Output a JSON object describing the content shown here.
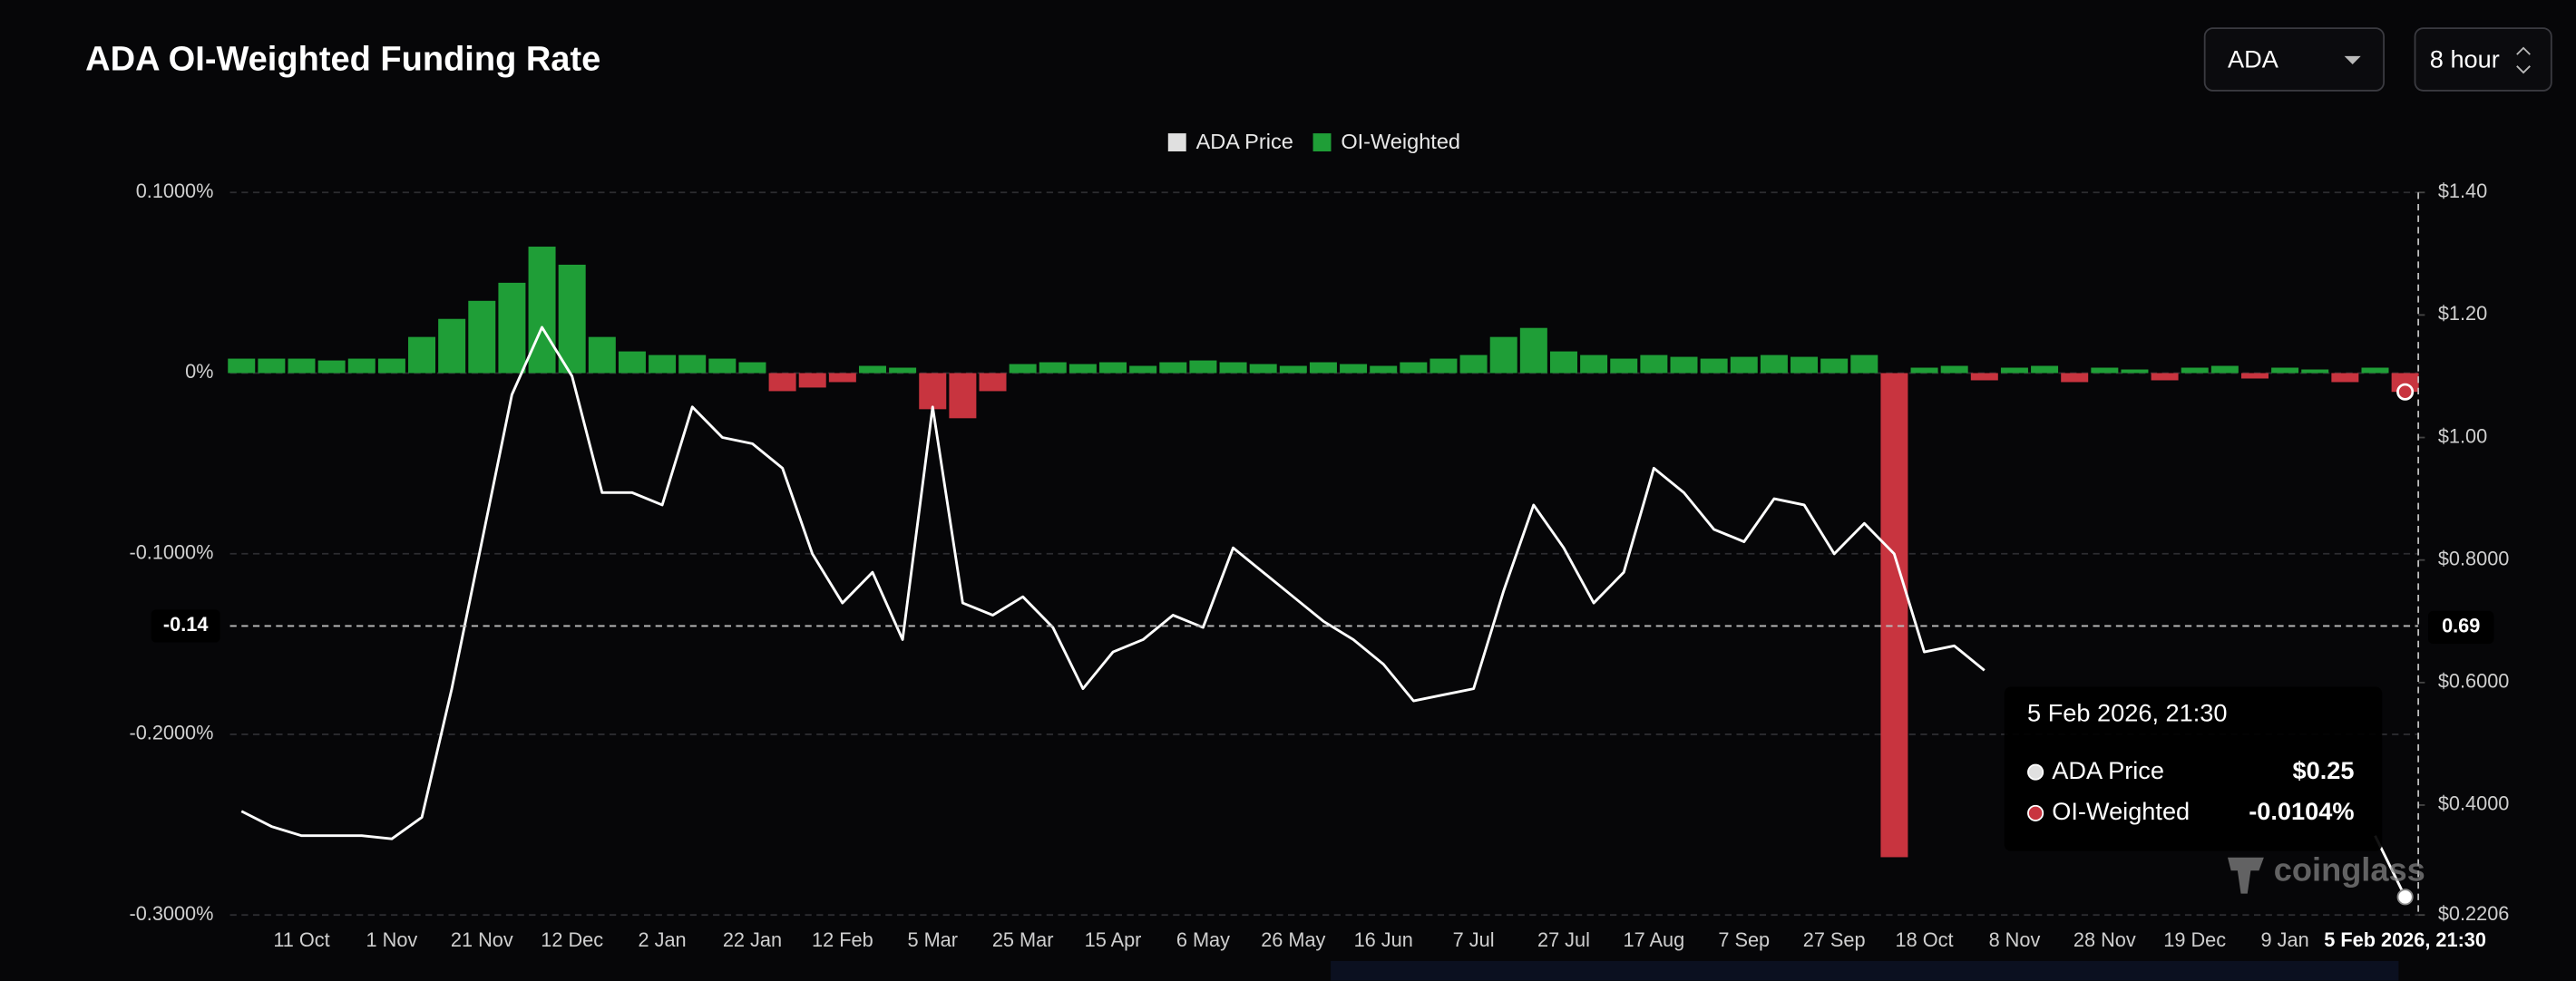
{
  "controls": {
    "symbol": "ADA",
    "interval": "8 hour"
  },
  "watermark": "coinglass",
  "chart_data": {
    "type": "combo",
    "title": "ADA OI-Weighted Funding Rate",
    "categories": [
      null,
      null,
      "11 Oct",
      null,
      null,
      "1 Nov",
      null,
      null,
      "21 Nov",
      null,
      null,
      "12 Dec",
      null,
      null,
      "2 Jan",
      null,
      null,
      "22 Jan",
      null,
      null,
      "12 Feb",
      null,
      null,
      "5 Mar",
      null,
      null,
      "25 Mar",
      null,
      null,
      "15 Apr",
      null,
      null,
      "6 May",
      null,
      null,
      "26 May",
      null,
      null,
      "16 Jun",
      null,
      null,
      "7 Jul",
      null,
      null,
      "27 Jul",
      null,
      null,
      "17 Aug",
      null,
      null,
      "7 Sep",
      null,
      null,
      "27 Sep",
      null,
      null,
      "18 Oct",
      null,
      null,
      "8 Nov",
      null,
      null,
      "28 Nov",
      null,
      null,
      "19 Dec",
      null,
      null,
      "9 Jan",
      null,
      null,
      null,
      "5 Feb 2026, 21:30"
    ],
    "series": [
      {
        "name": "ADA Price",
        "type": "line",
        "axis": "y2",
        "color": "#ffffff",
        "legend_color": "#e0e0e0",
        "values": [
          0.39,
          0.365,
          0.35,
          0.35,
          0.35,
          0.345,
          0.38,
          0.59,
          0.83,
          1.07,
          1.18,
          1.1,
          0.91,
          0.91,
          0.89,
          1.05,
          1.0,
          0.99,
          0.95,
          0.81,
          0.73,
          0.78,
          0.67,
          1.05,
          0.73,
          0.71,
          0.74,
          0.69,
          0.59,
          0.65,
          0.67,
          0.71,
          0.69,
          0.82,
          0.78,
          0.74,
          0.7,
          0.67,
          0.63,
          0.57,
          0.58,
          0.59,
          0.75,
          0.89,
          0.82,
          0.73,
          0.78,
          0.95,
          0.91,
          0.85,
          0.83,
          0.9,
          0.89,
          0.81,
          0.86,
          0.81,
          0.65,
          0.66,
          0.62,
          null,
          null,
          null,
          null,
          null,
          null,
          null,
          null,
          null,
          null,
          null,
          null,
          0.35,
          0.25
        ],
        "value_labels": [
          null,
          null,
          null,
          null,
          null,
          null,
          null,
          null,
          null,
          null,
          null,
          null,
          null,
          null,
          null,
          null,
          null,
          null,
          null,
          null,
          null,
          null,
          null,
          null,
          null,
          null,
          null,
          null,
          null,
          null,
          null,
          null,
          null,
          null,
          null,
          null,
          null,
          null,
          null,
          null,
          null,
          null,
          null,
          null,
          null,
          null,
          null,
          null,
          null,
          null,
          null,
          null,
          null,
          null,
          null,
          null,
          null,
          null,
          null,
          null,
          null,
          null,
          null,
          null,
          null,
          null,
          null,
          null,
          null,
          null,
          null,
          null,
          "$0.25"
        ]
      },
      {
        "name": "OI-Weighted",
        "type": "bar",
        "color": "#1f9e37",
        "negative_color": "#c8343f",
        "values": [
          0.008,
          0.008,
          0.008,
          0.007,
          0.008,
          0.008,
          0.02,
          0.03,
          0.04,
          0.05,
          0.07,
          0.06,
          0.02,
          0.012,
          0.01,
          0.01,
          0.008,
          0.006,
          -0.01,
          -0.008,
          -0.005,
          0.004,
          0.003,
          -0.02,
          -0.025,
          -0.01,
          0.005,
          0.006,
          0.005,
          0.006,
          0.004,
          0.006,
          0.007,
          0.006,
          0.005,
          0.004,
          0.006,
          0.005,
          0.004,
          0.006,
          0.008,
          0.01,
          0.02,
          0.025,
          0.012,
          0.01,
          0.008,
          0.01,
          0.009,
          0.008,
          0.009,
          0.01,
          0.009,
          0.008,
          0.01,
          -0.268,
          0.003,
          0.004,
          -0.004,
          0.003,
          0.004,
          -0.005,
          0.003,
          0.002,
          -0.004,
          0.003,
          0.004,
          -0.003,
          0.003,
          0.002,
          -0.005,
          0.003,
          -0.0104
        ],
        "value_labels": [
          null,
          null,
          null,
          null,
          null,
          null,
          null,
          null,
          null,
          null,
          null,
          null,
          null,
          null,
          null,
          null,
          null,
          null,
          null,
          null,
          null,
          null,
          null,
          null,
          null,
          null,
          null,
          null,
          null,
          null,
          null,
          null,
          null,
          null,
          null,
          null,
          null,
          null,
          null,
          null,
          null,
          null,
          null,
          null,
          null,
          null,
          null,
          null,
          null,
          null,
          null,
          null,
          null,
          null,
          null,
          null,
          null,
          null,
          null,
          null,
          null,
          null,
          null,
          null,
          null,
          null,
          null,
          null,
          null,
          null,
          null,
          null,
          "-0.0104%"
        ]
      }
    ],
    "ylim": [
      -0.3,
      0.1
    ],
    "yticks": [
      {
        "value": 0.1,
        "label": "0.1000%"
      },
      {
        "value": 0,
        "label": "0%"
      },
      {
        "value": -0.1,
        "label": "-0.1000%"
      },
      {
        "value": -0.2,
        "label": "-0.2000%"
      },
      {
        "value": -0.3,
        "label": "-0.3000%"
      }
    ],
    "y2lim": [
      0.2206,
      1.4
    ],
    "y2ticks": [
      {
        "value": 1.4,
        "label": "$1.40"
      },
      {
        "value": 1.2,
        "label": "$1.20"
      },
      {
        "value": 1.0,
        "label": "$1.00"
      },
      {
        "value": 0.8,
        "label": "$0.8000"
      },
      {
        "value": 0.6,
        "label": "$0.6000"
      },
      {
        "value": 0.4,
        "label": "$0.4000"
      },
      {
        "value": 0.2206,
        "label": "$0.2206"
      }
    ],
    "grid": true,
    "legend": "top",
    "crosshair": {
      "y": -0.14,
      "y2": 0.69
    }
  }
}
